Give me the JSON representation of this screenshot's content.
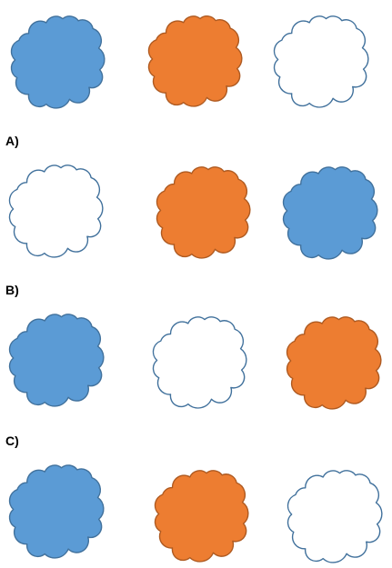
{
  "colors": {
    "blue": "#5b9bd5",
    "blue_stroke": "#41719c",
    "orange": "#ed7d31",
    "orange_stroke": "#ae5a21",
    "white": "#ffffff",
    "white_stroke": "#41719c"
  },
  "rows": [
    {
      "label": "",
      "clouds": [
        "blue",
        "orange",
        "white"
      ]
    },
    {
      "label": "A)",
      "clouds": [
        "white",
        "orange",
        "blue"
      ]
    },
    {
      "label": "B)",
      "clouds": [
        "blue",
        "white",
        "orange"
      ]
    },
    {
      "label": "C)",
      "clouds": [
        "blue",
        "orange",
        "white"
      ]
    }
  ]
}
